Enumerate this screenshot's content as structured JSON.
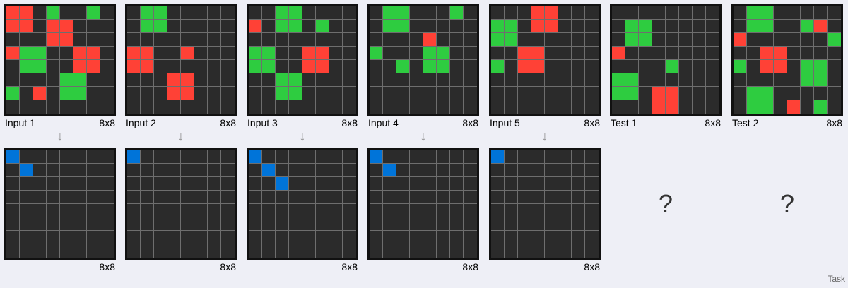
{
  "columns": [
    {
      "title": "Input 1",
      "input_size": "8x8",
      "output_size": "8x8",
      "input": [
        [
          1,
          1,
          0,
          2,
          0,
          0,
          2,
          0
        ],
        [
          1,
          1,
          0,
          1,
          1,
          0,
          0,
          0
        ],
        [
          0,
          0,
          0,
          1,
          1,
          0,
          0,
          0
        ],
        [
          1,
          2,
          2,
          0,
          0,
          1,
          1,
          0
        ],
        [
          0,
          2,
          2,
          0,
          0,
          1,
          1,
          0
        ],
        [
          0,
          0,
          0,
          0,
          2,
          2,
          0,
          0
        ],
        [
          2,
          0,
          1,
          0,
          2,
          2,
          0,
          0
        ],
        [
          0,
          0,
          0,
          0,
          0,
          0,
          0,
          0
        ]
      ],
      "output": [
        [
          3,
          0,
          0,
          0,
          0,
          0,
          0,
          0
        ],
        [
          0,
          3,
          0,
          0,
          0,
          0,
          0,
          0
        ],
        [
          0,
          0,
          0,
          0,
          0,
          0,
          0,
          0
        ],
        [
          0,
          0,
          0,
          0,
          0,
          0,
          0,
          0
        ],
        [
          0,
          0,
          0,
          0,
          0,
          0,
          0,
          0
        ],
        [
          0,
          0,
          0,
          0,
          0,
          0,
          0,
          0
        ],
        [
          0,
          0,
          0,
          0,
          0,
          0,
          0,
          0
        ],
        [
          0,
          0,
          0,
          0,
          0,
          0,
          0,
          0
        ]
      ]
    },
    {
      "title": "Input 2",
      "input_size": "8x8",
      "output_size": "8x8",
      "input": [
        [
          0,
          2,
          2,
          0,
          0,
          0,
          0,
          0
        ],
        [
          0,
          2,
          2,
          0,
          0,
          0,
          0,
          0
        ],
        [
          0,
          0,
          0,
          0,
          0,
          0,
          0,
          0
        ],
        [
          1,
          1,
          0,
          0,
          1,
          0,
          0,
          0
        ],
        [
          1,
          1,
          0,
          0,
          0,
          0,
          0,
          0
        ],
        [
          0,
          0,
          0,
          1,
          1,
          0,
          0,
          0
        ],
        [
          0,
          0,
          0,
          1,
          1,
          0,
          0,
          0
        ],
        [
          0,
          0,
          0,
          0,
          0,
          0,
          0,
          0
        ]
      ],
      "output": [
        [
          3,
          0,
          0,
          0,
          0,
          0,
          0,
          0
        ],
        [
          0,
          0,
          0,
          0,
          0,
          0,
          0,
          0
        ],
        [
          0,
          0,
          0,
          0,
          0,
          0,
          0,
          0
        ],
        [
          0,
          0,
          0,
          0,
          0,
          0,
          0,
          0
        ],
        [
          0,
          0,
          0,
          0,
          0,
          0,
          0,
          0
        ],
        [
          0,
          0,
          0,
          0,
          0,
          0,
          0,
          0
        ],
        [
          0,
          0,
          0,
          0,
          0,
          0,
          0,
          0
        ],
        [
          0,
          0,
          0,
          0,
          0,
          0,
          0,
          0
        ]
      ]
    },
    {
      "title": "Input 3",
      "input_size": "8x8",
      "output_size": "8x8",
      "input": [
        [
          0,
          0,
          2,
          2,
          0,
          0,
          0,
          0
        ],
        [
          1,
          0,
          2,
          2,
          0,
          2,
          0,
          0
        ],
        [
          0,
          0,
          0,
          0,
          0,
          0,
          0,
          0
        ],
        [
          2,
          2,
          0,
          0,
          1,
          1,
          0,
          0
        ],
        [
          2,
          2,
          0,
          0,
          1,
          1,
          0,
          0
        ],
        [
          0,
          0,
          2,
          2,
          0,
          0,
          0,
          0
        ],
        [
          0,
          0,
          2,
          2,
          0,
          0,
          0,
          0
        ],
        [
          0,
          0,
          0,
          0,
          0,
          0,
          0,
          0
        ]
      ],
      "output": [
        [
          3,
          0,
          0,
          0,
          0,
          0,
          0,
          0
        ],
        [
          0,
          3,
          0,
          0,
          0,
          0,
          0,
          0
        ],
        [
          0,
          0,
          3,
          0,
          0,
          0,
          0,
          0
        ],
        [
          0,
          0,
          0,
          0,
          0,
          0,
          0,
          0
        ],
        [
          0,
          0,
          0,
          0,
          0,
          0,
          0,
          0
        ],
        [
          0,
          0,
          0,
          0,
          0,
          0,
          0,
          0
        ],
        [
          0,
          0,
          0,
          0,
          0,
          0,
          0,
          0
        ],
        [
          0,
          0,
          0,
          0,
          0,
          0,
          0,
          0
        ]
      ]
    },
    {
      "title": "Input 4",
      "input_size": "8x8",
      "output_size": "8x8",
      "input": [
        [
          0,
          2,
          2,
          0,
          0,
          0,
          2,
          0
        ],
        [
          0,
          2,
          2,
          0,
          0,
          0,
          0,
          0
        ],
        [
          0,
          0,
          0,
          0,
          1,
          0,
          0,
          0
        ],
        [
          2,
          0,
          0,
          0,
          2,
          2,
          0,
          0
        ],
        [
          0,
          0,
          2,
          0,
          2,
          2,
          0,
          0
        ],
        [
          0,
          0,
          0,
          0,
          0,
          0,
          0,
          0
        ],
        [
          0,
          0,
          0,
          0,
          0,
          0,
          0,
          0
        ],
        [
          0,
          0,
          0,
          0,
          0,
          0,
          0,
          0
        ]
      ],
      "output": [
        [
          3,
          0,
          0,
          0,
          0,
          0,
          0,
          0
        ],
        [
          0,
          3,
          0,
          0,
          0,
          0,
          0,
          0
        ],
        [
          0,
          0,
          0,
          0,
          0,
          0,
          0,
          0
        ],
        [
          0,
          0,
          0,
          0,
          0,
          0,
          0,
          0
        ],
        [
          0,
          0,
          0,
          0,
          0,
          0,
          0,
          0
        ],
        [
          0,
          0,
          0,
          0,
          0,
          0,
          0,
          0
        ],
        [
          0,
          0,
          0,
          0,
          0,
          0,
          0,
          0
        ],
        [
          0,
          0,
          0,
          0,
          0,
          0,
          0,
          0
        ]
      ]
    },
    {
      "title": "Input 5",
      "input_size": "8x8",
      "output_size": "8x8",
      "input": [
        [
          0,
          0,
          0,
          1,
          1,
          0,
          0,
          0
        ],
        [
          2,
          2,
          0,
          1,
          1,
          0,
          0,
          0
        ],
        [
          2,
          2,
          0,
          0,
          0,
          0,
          0,
          0
        ],
        [
          0,
          0,
          1,
          1,
          0,
          0,
          0,
          0
        ],
        [
          2,
          0,
          1,
          1,
          0,
          0,
          0,
          0
        ],
        [
          0,
          0,
          0,
          0,
          0,
          0,
          0,
          0
        ],
        [
          0,
          0,
          0,
          0,
          0,
          0,
          0,
          0
        ],
        [
          0,
          0,
          0,
          0,
          0,
          0,
          0,
          0
        ]
      ],
      "output": [
        [
          3,
          0,
          0,
          0,
          0,
          0,
          0,
          0
        ],
        [
          0,
          0,
          0,
          0,
          0,
          0,
          0,
          0
        ],
        [
          0,
          0,
          0,
          0,
          0,
          0,
          0,
          0
        ],
        [
          0,
          0,
          0,
          0,
          0,
          0,
          0,
          0
        ],
        [
          0,
          0,
          0,
          0,
          0,
          0,
          0,
          0
        ],
        [
          0,
          0,
          0,
          0,
          0,
          0,
          0,
          0
        ],
        [
          0,
          0,
          0,
          0,
          0,
          0,
          0,
          0
        ],
        [
          0,
          0,
          0,
          0,
          0,
          0,
          0,
          0
        ]
      ]
    },
    {
      "title": "Test 1",
      "input_size": "8x8",
      "unknown": "?",
      "input": [
        [
          0,
          0,
          0,
          0,
          0,
          0,
          0,
          0
        ],
        [
          0,
          2,
          2,
          0,
          0,
          0,
          0,
          0
        ],
        [
          0,
          2,
          2,
          0,
          0,
          0,
          0,
          0
        ],
        [
          1,
          0,
          0,
          0,
          0,
          0,
          0,
          0
        ],
        [
          0,
          0,
          0,
          0,
          2,
          0,
          0,
          0
        ],
        [
          2,
          2,
          0,
          0,
          0,
          0,
          0,
          0
        ],
        [
          2,
          2,
          0,
          1,
          1,
          0,
          0,
          0
        ],
        [
          0,
          0,
          0,
          1,
          1,
          0,
          0,
          0
        ]
      ]
    },
    {
      "title": "Test 2",
      "input_size": "8x8",
      "unknown": "?",
      "input": [
        [
          0,
          2,
          2,
          0,
          0,
          0,
          0,
          0
        ],
        [
          0,
          2,
          2,
          0,
          0,
          2,
          1,
          0
        ],
        [
          1,
          0,
          0,
          0,
          0,
          0,
          0,
          2
        ],
        [
          0,
          0,
          1,
          1,
          0,
          0,
          0,
          0
        ],
        [
          2,
          0,
          1,
          1,
          0,
          2,
          2,
          0
        ],
        [
          0,
          0,
          0,
          0,
          0,
          2,
          2,
          0
        ],
        [
          0,
          2,
          2,
          0,
          0,
          0,
          0,
          0
        ],
        [
          0,
          2,
          2,
          0,
          1,
          0,
          2,
          0
        ]
      ]
    }
  ],
  "colors": {
    "0": "#2b2b2b",
    "1": "#ff4136",
    "2": "#2ecc40",
    "3": "#0074d9"
  },
  "arrow_glyph": "↓",
  "footer": {
    "task_label": "Task"
  }
}
